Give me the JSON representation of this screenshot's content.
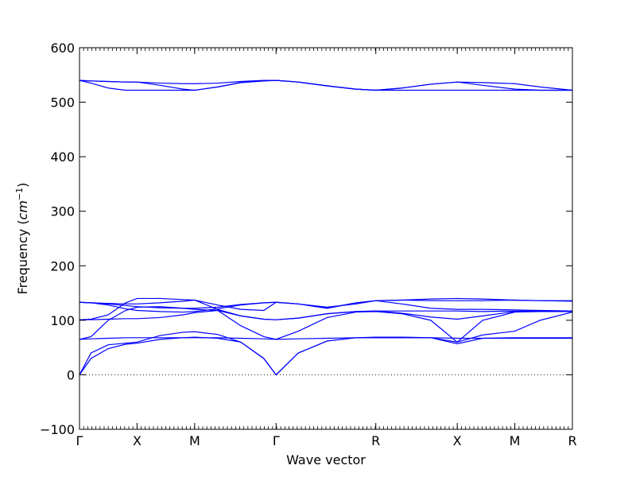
{
  "chart_data": {
    "type": "line",
    "title": "",
    "xlabel": "Wave vector",
    "ylabel_main": "Frequency (",
    "ylabel_unit": "cm",
    "ylabel_exp": "−1",
    "ylabel_close": ")",
    "ylim": [
      -100,
      600
    ],
    "yticks": [
      "−100",
      "0",
      "100",
      "200",
      "300",
      "400",
      "500",
      "600"
    ],
    "ytick_values": [
      -100,
      0,
      100,
      200,
      300,
      400,
      500,
      600
    ],
    "xticks": [
      "Γ",
      "X",
      "M",
      "Γ",
      "R",
      "X",
      "M",
      "R"
    ],
    "xtick_positions": [
      0,
      0.5,
      1.0,
      1.707,
      2.573,
      3.28,
      3.78,
      4.28
    ],
    "xlim": [
      0,
      4.28
    ],
    "zero_line": true,
    "grid": false,
    "line_color": "#0000ff",
    "zero_line_color": "#000000",
    "series": [
      {
        "x": [
          0,
          0.1,
          0.25,
          0.4,
          0.5,
          0.7,
          0.9,
          1.0,
          1.2,
          1.4,
          1.6,
          1.707,
          1.9,
          2.15,
          2.4,
          2.573,
          2.8,
          3.05,
          3.28,
          3.5,
          3.78,
          4.0,
          4.28
        ],
        "y": [
          0,
          30,
          48,
          56,
          58,
          65,
          68,
          69,
          67,
          60,
          30,
          0,
          40,
          62,
          68,
          68,
          68,
          68,
          57,
          67,
          68,
          68,
          68
        ]
      },
      {
        "x": [
          0,
          0.1,
          0.25,
          0.4,
          0.5,
          0.7,
          0.9,
          1.0,
          1.2,
          1.4,
          1.6,
          1.707,
          1.9,
          2.15,
          2.4,
          2.573,
          2.8,
          3.05,
          3.28,
          3.5,
          3.78,
          4.0,
          4.28
        ],
        "y": [
          0,
          40,
          55,
          58,
          60,
          72,
          78,
          79,
          74,
          60,
          30,
          0,
          40,
          62,
          68,
          69,
          69,
          68,
          60,
          73,
          80,
          100,
          115
        ]
      },
      {
        "x": [
          0,
          0.1,
          0.25,
          0.4,
          0.5,
          0.7,
          0.9,
          1.0,
          1.2,
          1.4,
          1.6,
          1.707,
          1.9,
          2.15,
          2.4,
          2.573,
          2.8,
          3.05,
          3.28,
          3.5,
          3.78,
          4.0,
          4.28
        ],
        "y": [
          65,
          66,
          67,
          68,
          68,
          68,
          68,
          68,
          68,
          67,
          66,
          65,
          66,
          67,
          68,
          68,
          68,
          68,
          67,
          67,
          67,
          67,
          67
        ]
      },
      {
        "x": [
          0,
          0.1,
          0.25,
          0.4,
          0.5,
          0.7,
          0.9,
          1.0,
          1.2,
          1.4,
          1.6,
          1.707,
          1.9,
          2.15,
          2.4,
          2.573,
          2.8,
          3.05,
          3.28,
          3.5,
          3.78,
          4.0,
          4.28
        ],
        "y": [
          65,
          70,
          100,
          118,
          124,
          125,
          122,
          120,
          118,
          90,
          70,
          65,
          80,
          105,
          115,
          116,
          112,
          100,
          60,
          100,
          115,
          116,
          116
        ]
      },
      {
        "x": [
          0,
          0.1,
          0.25,
          0.4,
          0.5,
          0.7,
          0.9,
          1.0,
          1.2,
          1.4,
          1.6,
          1.707,
          1.9,
          2.15,
          2.4,
          2.573,
          2.8,
          3.05,
          3.28,
          3.5,
          3.78,
          4.0,
          4.28
        ],
        "y": [
          101,
          102,
          110,
          132,
          140,
          140,
          138,
          137,
          120,
          108,
          102,
          101,
          104,
          112,
          116,
          117,
          117,
          117,
          117,
          116,
          117,
          117,
          117
        ]
      },
      {
        "x": [
          0,
          0.1,
          0.25,
          0.4,
          0.5,
          0.7,
          0.9,
          1.0,
          1.2,
          1.4,
          1.6,
          1.707,
          1.9,
          2.15,
          2.4,
          2.573,
          2.8,
          3.05,
          3.28,
          3.5,
          3.78,
          4.0,
          4.28
        ],
        "y": [
          101,
          101,
          102,
          103,
          103,
          105,
          110,
          114,
          118,
          108,
          102,
          101,
          104,
          112,
          116,
          117,
          113,
          106,
          102,
          108,
          116,
          116,
          116
        ]
      },
      {
        "x": [
          0,
          0.1,
          0.25,
          0.4,
          0.5,
          0.7,
          0.9,
          1.0,
          1.2,
          1.4,
          1.6,
          1.707,
          1.9,
          2.15,
          2.4,
          2.573,
          2.8,
          3.05,
          3.28,
          3.5,
          3.78,
          4.0,
          4.28
        ],
        "y": [
          133,
          132,
          128,
          121,
          118,
          116,
          115,
          116,
          121,
          128,
          132,
          133,
          130,
          124,
          130,
          136,
          137,
          139,
          140,
          139,
          137,
          136,
          135
        ]
      },
      {
        "x": [
          0,
          0.1,
          0.25,
          0.4,
          0.5,
          0.7,
          0.9,
          1.0,
          1.2,
          1.4,
          1.6,
          1.707,
          1.9,
          2.15,
          2.4,
          2.573,
          2.8,
          3.05,
          3.28,
          3.5,
          3.78,
          4.0,
          4.28
        ],
        "y": [
          133,
          132,
          130,
          127,
          125,
          123,
          122,
          122,
          124,
          129,
          132,
          133,
          130,
          122,
          132,
          136,
          130,
          122,
          120,
          120,
          119,
          118,
          117
        ]
      },
      {
        "x": [
          0,
          0.1,
          0.25,
          0.4,
          0.5,
          0.7,
          0.9,
          1.0,
          1.2,
          1.4,
          1.6,
          1.707,
          1.9,
          2.15,
          2.4,
          2.573,
          2.8,
          3.05,
          3.28,
          3.5,
          3.78,
          4.0,
          4.28
        ],
        "y": [
          133,
          132,
          131,
          130,
          130,
          132,
          135,
          137,
          128,
          120,
          118,
          133,
          130,
          122,
          132,
          136,
          137,
          136,
          136,
          136,
          137,
          136,
          136
        ]
      },
      {
        "x": [
          0,
          0.1,
          0.25,
          0.4,
          0.5,
          0.7,
          0.9,
          1.0,
          1.2,
          1.4,
          1.6,
          1.707,
          1.9,
          2.15,
          2.4,
          2.573,
          2.8,
          3.05,
          3.28,
          3.5,
          3.78,
          4.0,
          4.28
        ],
        "y": [
          540,
          535,
          526,
          522,
          522,
          522,
          522,
          522,
          528,
          536,
          539,
          540,
          537,
          530,
          524,
          522,
          522,
          522,
          522,
          522,
          522,
          522,
          522
        ]
      },
      {
        "x": [
          0,
          0.1,
          0.25,
          0.4,
          0.5,
          0.7,
          0.9,
          1.0,
          1.2,
          1.4,
          1.6,
          1.707,
          1.9,
          2.15,
          2.4,
          2.573,
          2.8,
          3.05,
          3.28,
          3.5,
          3.78,
          4.0,
          4.28
        ],
        "y": [
          540,
          539,
          538,
          537,
          537,
          531,
          524,
          522,
          528,
          536,
          539,
          540,
          537,
          530,
          524,
          522,
          526,
          533,
          537,
          531,
          524,
          522,
          522
        ]
      },
      {
        "x": [
          0,
          0.1,
          0.25,
          0.4,
          0.5,
          0.7,
          0.9,
          1.0,
          1.2,
          1.4,
          1.6,
          1.707,
          1.9,
          2.15,
          2.4,
          2.573,
          2.8,
          3.05,
          3.28,
          3.5,
          3.78,
          4.0,
          4.28
        ],
        "y": [
          540,
          539,
          538,
          537,
          537,
          535,
          534,
          534,
          535,
          538,
          540,
          540,
          537,
          530,
          524,
          522,
          526,
          533,
          537,
          536,
          534,
          528,
          522
        ]
      }
    ]
  }
}
